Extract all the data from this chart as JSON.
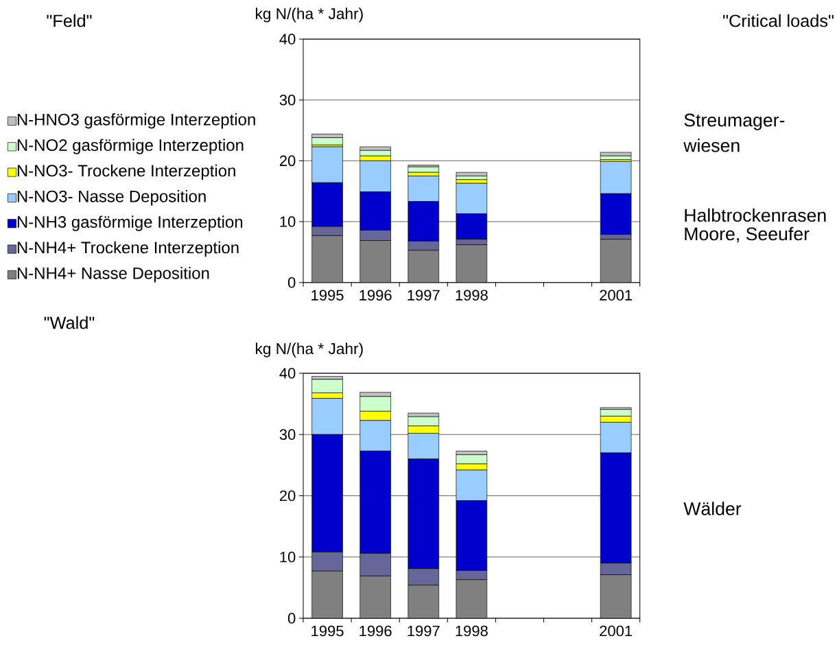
{
  "chart_data": [
    {
      "type": "bar",
      "stacked": true,
      "ylabel": "kg N/(ha * Jahr)",
      "categories": [
        "1995",
        "1996",
        "1997",
        "1998",
        null,
        null,
        "2001"
      ],
      "series": [
        {
          "name": "N-NH4+ Nasse Deposition",
          "color": "#808080",
          "values": [
            7.7,
            6.9,
            5.3,
            6.2,
            null,
            null,
            7.1
          ]
        },
        {
          "name": "N-NH4+ Trockene Interzeption",
          "color": "#666699",
          "values": [
            1.5,
            1.7,
            1.5,
            0.9,
            null,
            null,
            0.8
          ]
        },
        {
          "name": "N-NH3 gasförmige Interzeption",
          "color": "#0000cc",
          "values": [
            7.2,
            6.3,
            6.5,
            4.2,
            null,
            null,
            6.7
          ]
        },
        {
          "name": "N-NO3- Nasse Deposition",
          "color": "#99ccff",
          "values": [
            5.9,
            5.1,
            4.2,
            5.0,
            null,
            null,
            5.3
          ]
        },
        {
          "name": "N-NO3- Trockene Interzeption",
          "color": "#ffff00",
          "values": [
            0.3,
            0.8,
            0.6,
            0.6,
            null,
            null,
            0.3
          ]
        },
        {
          "name": "N-NO2 gasförmige Interzeption",
          "color": "#ccffcc",
          "values": [
            1.2,
            0.9,
            0.9,
            0.6,
            null,
            null,
            0.6
          ]
        },
        {
          "name": "N-HNO3 gasförmige Interzeption",
          "color": "#c0c0c0",
          "values": [
            0.6,
            0.6,
            0.3,
            0.6,
            null,
            null,
            0.6
          ]
        }
      ],
      "ylim": [
        0,
        40
      ],
      "yticks": [
        0,
        10,
        20,
        30,
        40
      ],
      "grid": "y",
      "legend": "left",
      "annotations": [
        "\"Feld\"",
        "\"Critical loads\"",
        "Streumager-wiesen",
        "Halbtrockenrasen",
        "Moore, Seeufer"
      ]
    },
    {
      "type": "bar",
      "stacked": true,
      "ylabel": "kg N/(ha * Jahr)",
      "categories": [
        "1995",
        "1996",
        "1997",
        "1998",
        null,
        null,
        "2001"
      ],
      "series": [
        {
          "color": "#808080",
          "values": [
            7.7,
            6.9,
            5.4,
            6.3,
            null,
            null,
            7.1
          ]
        },
        {
          "color": "#666699",
          "values": [
            3.1,
            3.7,
            2.7,
            1.5,
            null,
            null,
            1.9
          ]
        },
        {
          "color": "#0000cc",
          "values": [
            19.2,
            16.7,
            17.9,
            11.4,
            null,
            null,
            18.0
          ]
        },
        {
          "color": "#99ccff",
          "values": [
            5.9,
            5.0,
            4.2,
            5.0,
            null,
            null,
            5.0
          ]
        },
        {
          "color": "#ffff00",
          "values": [
            0.9,
            1.5,
            1.2,
            1.0,
            null,
            null,
            1.0
          ]
        },
        {
          "color": "#ccffcc",
          "values": [
            2.2,
            2.4,
            1.5,
            1.5,
            null,
            null,
            1.1
          ]
        },
        {
          "color": "#c0c0c0",
          "values": [
            0.5,
            0.7,
            0.6,
            0.6,
            null,
            null,
            0.3
          ]
        }
      ],
      "ylim": [
        0,
        40
      ],
      "yticks": [
        0,
        10,
        20,
        30,
        40
      ],
      "grid": "y",
      "legend": false,
      "annotations": [
        "\"Wald\"",
        "Wälder"
      ]
    }
  ]
}
